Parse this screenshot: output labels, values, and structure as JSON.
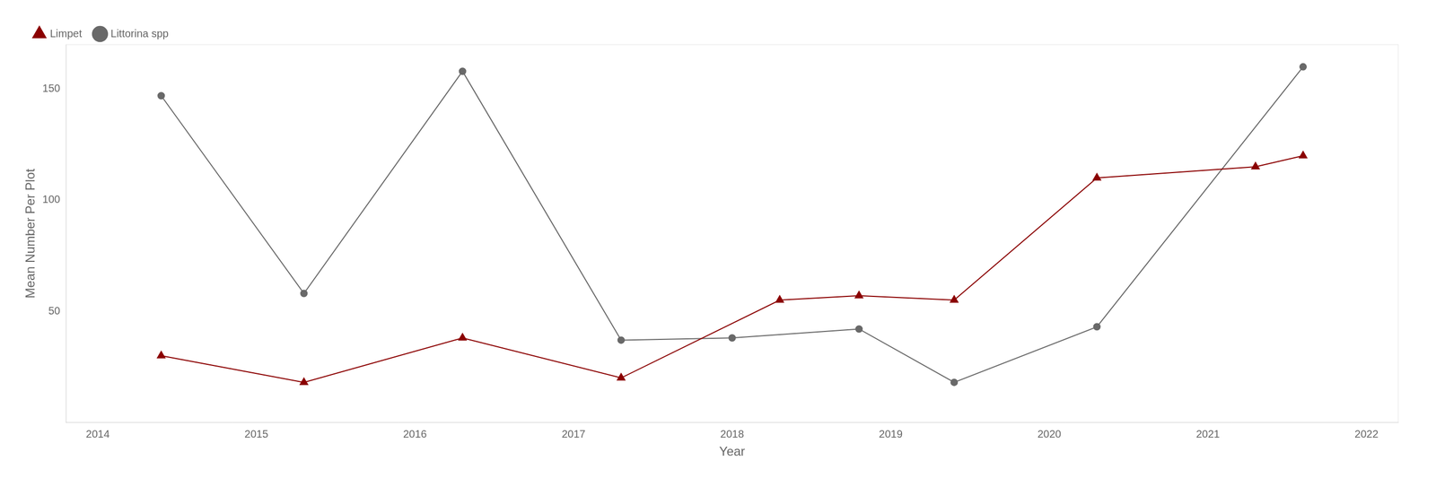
{
  "chart_data": {
    "type": "line",
    "xlabel": "Year",
    "ylabel": "Mean Number Per Plot",
    "series": [
      {
        "name": "Limpet",
        "color": "#8B0000",
        "marker": "triangle",
        "x": [
          2014.4,
          2015.3,
          2016.3,
          2017.3,
          2018.3,
          2018.8,
          2019.4,
          2020.3,
          2021.3,
          2021.6
        ],
        "values": [
          30,
          18,
          38,
          20,
          55,
          57,
          55,
          110,
          115,
          120
        ]
      },
      {
        "name": "Littorina spp",
        "color": "#696969",
        "marker": "circle",
        "x": [
          2014.4,
          2015.3,
          2016.3,
          2017.3,
          2018.0,
          2018.8,
          2019.4,
          2020.3,
          2021.6
        ],
        "values": [
          147,
          58,
          158,
          37,
          38,
          42,
          18,
          43,
          160
        ]
      }
    ],
    "xlim": [
      2013.8,
      2022.2
    ],
    "xticks": [
      2014,
      2015,
      2016,
      2017,
      2018,
      2019,
      2020,
      2021,
      2022
    ],
    "ylim": [
      0,
      170
    ],
    "yticks": [
      50,
      100,
      150
    ],
    "grid": false,
    "legend": "upper left"
  }
}
